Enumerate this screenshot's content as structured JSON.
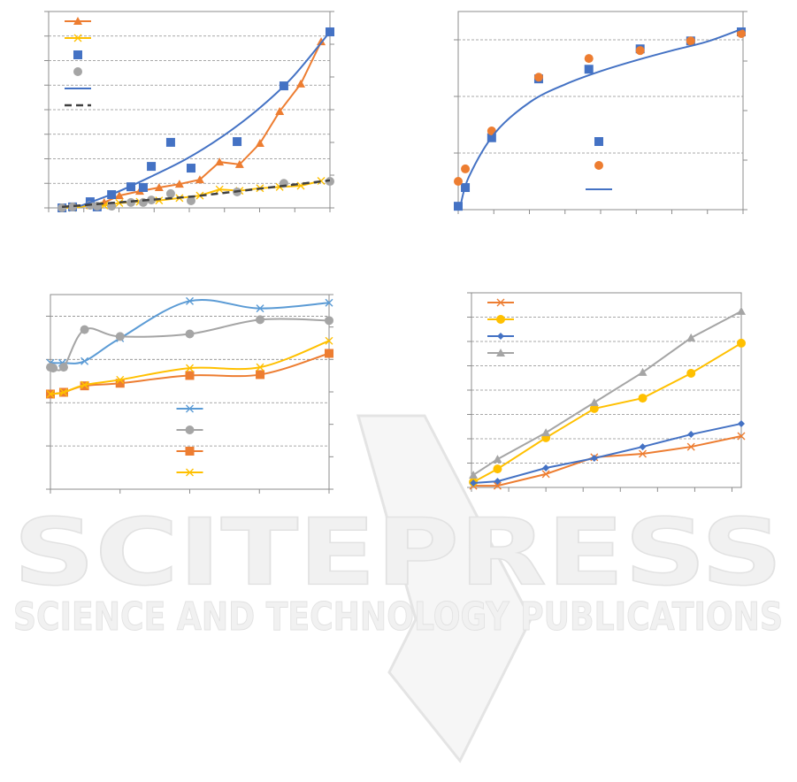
{
  "chart_data": [
    {
      "type": "line",
      "grid": true,
      "legend": "upper left",
      "xlim": [
        0,
        8
      ],
      "xticks": [
        0,
        1,
        2,
        3,
        4,
        5,
        6,
        7,
        8
      ],
      "ylim": [
        0,
        8
      ],
      "yticks": [
        0,
        1,
        2,
        3,
        4,
        5,
        6,
        7,
        8
      ],
      "y2lim": [
        0,
        6
      ],
      "y2ticks": [
        0,
        1,
        2,
        3,
        4,
        5,
        6
      ],
      "series": [
        {
          "color": "#ed7d31",
          "marker": "triangle",
          "line": "solid",
          "x": [
            0.38,
            0.68,
            1.18,
            1.58,
            2.01,
            2.59,
            3.14,
            3.72,
            4.3,
            4.86,
            5.43,
            6.01,
            6.57,
            7.17,
            7.75
          ],
          "values": [
            0,
            0.04,
            0.11,
            0.22,
            0.5,
            0.68,
            0.83,
            0.97,
            1.15,
            1.87,
            1.77,
            2.63,
            3.93,
            5.05,
            6.77
          ]
        },
        {
          "color": "#ffc000",
          "marker": "x",
          "line": "solid",
          "x": [
            0.38,
            0.68,
            1.18,
            1.58,
            2.01,
            2.59,
            3.14,
            3.72,
            4.3,
            4.86,
            5.43,
            6.01,
            6.57,
            7.17,
            7.75
          ],
          "values": [
            0,
            0,
            0.1,
            0.1,
            0.2,
            0.25,
            0.3,
            0.4,
            0.5,
            0.75,
            0.7,
            0.8,
            0.85,
            0.9,
            1.1
          ]
        },
        {
          "color": "#4472c4",
          "marker": "square",
          "line": "none",
          "x": [
            0.38,
            0.68,
            1.18,
            1.38,
            1.79,
            2.34,
            2.69,
            2.92,
            3.47,
            4.05,
            5.36,
            6.69,
            8
          ],
          "values": [
            0,
            0.04,
            0.25,
            0.04,
            0.54,
            0.86,
            0.83,
            1.69,
            2.67,
            1.62,
            2.7,
            4.97,
            7.17
          ]
        },
        {
          "color": "#a5a5a5",
          "marker": "circle",
          "line": "none",
          "x": [
            0.38,
            0.68,
            1.18,
            1.38,
            1.79,
            2.34,
            2.69,
            2.92,
            3.47,
            4.05,
            5.36,
            6.69,
            8
          ],
          "values": [
            0,
            0.04,
            0.11,
            0.07,
            0.07,
            0.22,
            0.22,
            0.32,
            0.58,
            0.29,
            0.65,
            1,
            1.08
          ]
        },
        {
          "color": "#4472c4",
          "marker": "none",
          "line": "smooth",
          "x": [
            0.88,
            1.89,
            2.89,
            3.9,
            4.91,
            5.91,
            6.92,
            8
          ],
          "values": [
            0.07,
            0.61,
            1.26,
            1.98,
            2.88,
            3.96,
            5.3,
            7.17
          ]
        },
        {
          "color": "#404040",
          "marker": "none",
          "line": "dashed",
          "x": [
            0.38,
            4.15,
            8
          ],
          "values": [
            0.04,
            0.47,
            1.12
          ]
        }
      ]
    },
    {
      "type": "scatter",
      "grid": true,
      "legend": "center right",
      "xlim": [
        0,
        8
      ],
      "xticks": [
        0,
        1,
        2,
        3,
        4,
        5,
        6,
        7,
        8
      ],
      "ylim": [
        0,
        3.5
      ],
      "yticks": [
        0,
        1,
        2,
        3
      ],
      "y2lim": [
        0,
        4
      ],
      "y2ticks": [
        0,
        1,
        2,
        3,
        4
      ],
      "series": [
        {
          "color": "#4472c4",
          "marker": "square",
          "line": "none",
          "x": [
            0,
            0.2,
            0.94,
            2.26,
            3.67,
            5.11,
            6.53,
            7.95
          ],
          "values": [
            0.06,
            0.39,
            1.27,
            2.31,
            2.48,
            2.84,
            2.98,
            3.14
          ]
        },
        {
          "color": "#ed7d31",
          "marker": "circle",
          "line": "none",
          "x": [
            0,
            0.2,
            0.94,
            2.26,
            3.67,
            5.11,
            6.53,
            7.95
          ],
          "values": [
            0.5,
            0.72,
            1.39,
            2.34,
            2.67,
            2.81,
            2.98,
            3.11
          ]
        },
        {
          "color": "#4472c4",
          "marker": "none",
          "line": "smooth",
          "x": [
            0.05,
            0.3,
            1.04,
            2.04,
            3.03,
            4.02,
            5.01,
            6,
            7,
            8
          ],
          "values": [
            0.03,
            0.58,
            1.36,
            1.91,
            2.22,
            2.45,
            2.64,
            2.81,
            2.97,
            3.2
          ]
        }
      ]
    },
    {
      "type": "line",
      "grid": true,
      "legend": "lower center",
      "xlim": [
        0,
        4
      ],
      "xticks": [
        0,
        1,
        2,
        3,
        4
      ],
      "ylim": [
        0,
        4.5
      ],
      "yticks": [
        0,
        1,
        2,
        3,
        4
      ],
      "y2lim": [
        0,
        6
      ],
      "y2ticks": [
        0,
        1,
        2,
        3,
        4,
        5,
        6
      ],
      "series": [
        {
          "color": "#5b9bd5",
          "marker": "x",
          "line": "smooth",
          "x": [
            0,
            0.17,
            0.49,
            1,
            2,
            3.01,
            4
          ],
          "values": [
            2.92,
            2.92,
            2.96,
            3.49,
            4.35,
            4.18,
            4.31
          ]
        },
        {
          "color": "#a5a5a5",
          "marker": "circle",
          "line": "smooth",
          "x": [
            0,
            0.04,
            0.19,
            0.49,
            1,
            2,
            3.01,
            4
          ],
          "values": [
            2.82,
            2.8,
            2.82,
            3.69,
            3.53,
            3.59,
            3.92,
            3.9
          ]
        },
        {
          "color": "#ed7d31",
          "marker": "square",
          "line": "smooth",
          "x": [
            0,
            0.19,
            0.49,
            1,
            2,
            3.01,
            4
          ],
          "values": [
            2.2,
            2.24,
            2.39,
            2.45,
            2.63,
            2.65,
            3.14
          ]
        },
        {
          "color": "#ffc000",
          "marker": "x",
          "line": "smooth",
          "x": [
            0,
            0.19,
            0.49,
            1,
            2,
            3.01,
            4
          ],
          "values": [
            2.2,
            2.24,
            2.41,
            2.53,
            2.8,
            2.82,
            3.43
          ]
        }
      ]
    },
    {
      "type": "line",
      "grid": true,
      "legend": "upper left",
      "xlim": [
        0,
        7.25
      ],
      "xticks": [
        0,
        1,
        2,
        3,
        4,
        5,
        6,
        7
      ],
      "ylim": [
        0,
        8
      ],
      "yticks": [
        0,
        1,
        2,
        3,
        4,
        5,
        6,
        7,
        8
      ],
      "series": [
        {
          "color": "#ed7d31",
          "marker": "x",
          "line": "solid",
          "x": [
            0.05,
            0.7,
            2,
            3.3,
            4.6,
            5.9,
            7.25
          ],
          "values": [
            0.07,
            0.07,
            0.55,
            1.24,
            1.38,
            1.67,
            2.11
          ]
        },
        {
          "color": "#ffc000",
          "marker": "circle",
          "line": "solid",
          "x": [
            0.05,
            0.7,
            2,
            3.3,
            4.6,
            5.9,
            7.25
          ],
          "values": [
            0.22,
            0.76,
            2.04,
            3.24,
            3.67,
            4.69,
            5.93
          ]
        },
        {
          "color": "#4472c4",
          "marker": "diamond",
          "line": "solid",
          "x": [
            0.05,
            0.7,
            2,
            3.3,
            4.6,
            5.9,
            7.25
          ],
          "values": [
            0.18,
            0.25,
            0.8,
            1.2,
            1.67,
            2.18,
            2.62
          ]
        },
        {
          "color": "#a5a5a5",
          "marker": "triangle",
          "line": "solid",
          "x": [
            0.05,
            0.7,
            2,
            3.3,
            4.6,
            5.9,
            7.25
          ],
          "values": [
            0.51,
            1.16,
            2.25,
            3.49,
            4.73,
            6.15,
            7.24
          ]
        }
      ]
    }
  ],
  "watermark": {
    "title": "SCITEPRESS",
    "subtitle": "SCIENCE AND TECHNOLOGY PUBLICATIONS"
  }
}
